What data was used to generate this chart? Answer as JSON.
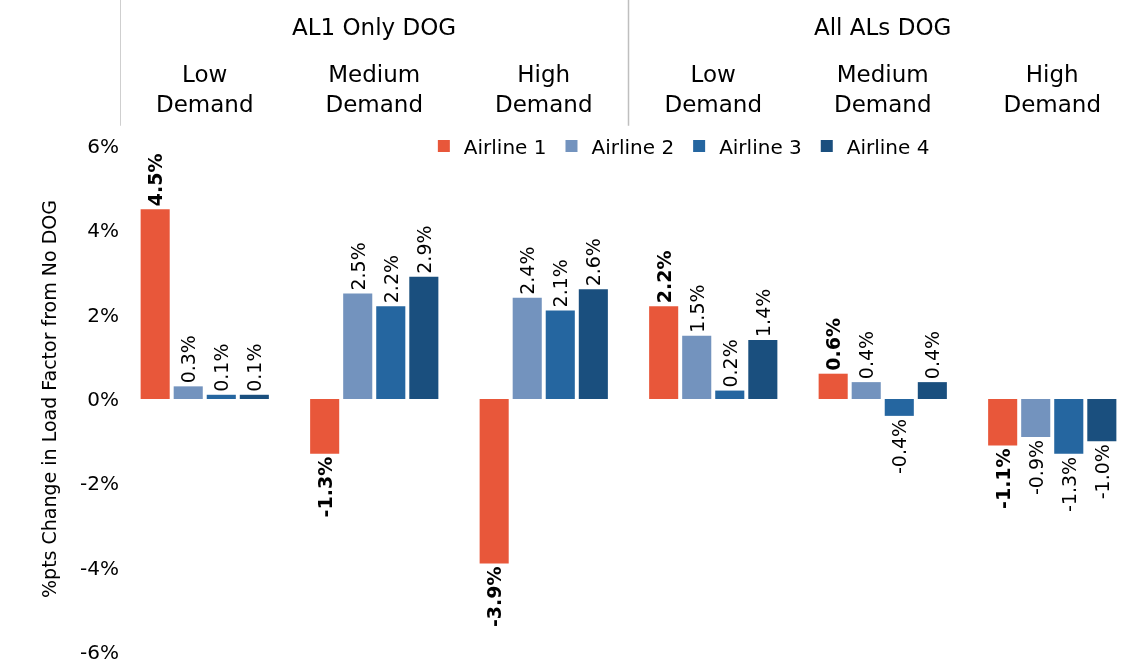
{
  "chart_data": {
    "type": "bar",
    "ylabel": "%pts Change in Load Factor from No DOG",
    "categories": [
      "Low Demand",
      "Medium Demand",
      "High Demand",
      "Low Demand",
      "Medium Demand",
      "High Demand"
    ],
    "annotations": [
      "AL1 Only DOG",
      "All ALs DOG"
    ],
    "series": [
      {
        "name": "Airline 1",
        "color": "#e8573a",
        "values": [
          4.5,
          -1.3,
          -3.9,
          2.2,
          0.6,
          -1.1
        ],
        "value_labels": [
          "4.5%",
          "-1.3%",
          "-3.9%",
          "2.2%",
          "0.6%",
          "-1.1%"
        ]
      },
      {
        "name": "Airline 2",
        "color": "#7393be",
        "values": [
          0.3,
          2.5,
          2.4,
          1.5,
          0.4,
          -0.9
        ],
        "value_labels": [
          "0.3%",
          "2.5%",
          "2.4%",
          "1.5%",
          "0.4%",
          "-0.9%"
        ]
      },
      {
        "name": "Airline 3",
        "color": "#2566a0",
        "values": [
          0.1,
          2.2,
          2.1,
          0.2,
          -0.4,
          -1.3
        ],
        "value_labels": [
          "0.1%",
          "2.2%",
          "2.1%",
          "0.2%",
          "-0.4%",
          "-1.3%"
        ]
      },
      {
        "name": "Airline 4",
        "color": "#1a4f7e",
        "values": [
          0.1,
          2.9,
          2.6,
          1.4,
          0.4,
          -1.0
        ],
        "value_labels": [
          "0.1%",
          "2.9%",
          "2.6%",
          "1.4%",
          "0.4%",
          "-1.0%"
        ]
      }
    ],
    "ylim": [
      -6,
      6
    ],
    "yticks": [
      {
        "value": -6,
        "label": "-6%"
      },
      {
        "value": -4,
        "label": "-4%"
      },
      {
        "value": -2,
        "label": "-2%"
      },
      {
        "value": 0,
        "label": "0%"
      },
      {
        "value": 2,
        "label": "2%"
      },
      {
        "value": 4,
        "label": "4%"
      },
      {
        "value": 6,
        "label": "6%"
      }
    ],
    "grid": false,
    "legend": "top"
  }
}
